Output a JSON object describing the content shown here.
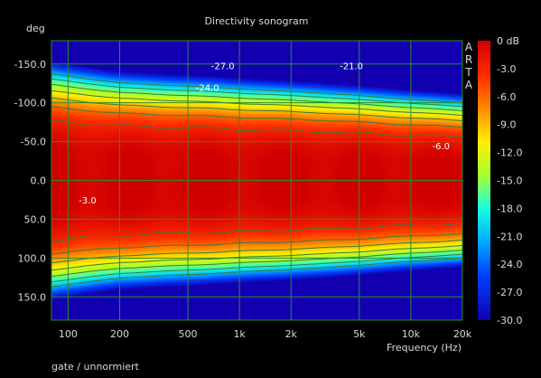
{
  "chart_data": {
    "type": "heatmap",
    "title": "Directivity sonogram",
    "ylabel": "deg",
    "xlabel": "Frequency (Hz)",
    "footer": "gate / unnormiert",
    "brand": "ARTA",
    "x_scale": "log",
    "xlim": [
      80,
      20000
    ],
    "ylim": [
      -180,
      180
    ],
    "x_ticks": [
      {
        "value": 100,
        "label": "100"
      },
      {
        "value": 200,
        "label": "200"
      },
      {
        "value": 500,
        "label": "500"
      },
      {
        "value": 1000,
        "label": "1k"
      },
      {
        "value": 2000,
        "label": "2k"
      },
      {
        "value": 5000,
        "label": "5k"
      },
      {
        "value": 10000,
        "label": "10k"
      },
      {
        "value": 20000,
        "label": "20k"
      }
    ],
    "y_ticks": [
      {
        "value": -150,
        "label": "-150.0"
      },
      {
        "value": -100,
        "label": "-100.0"
      },
      {
        "value": -50,
        "label": "-50.0"
      },
      {
        "value": 0,
        "label": "0.0"
      },
      {
        "value": 50,
        "label": "50.0"
      },
      {
        "value": 100,
        "label": "100.0"
      },
      {
        "value": 150,
        "label": "150.0"
      }
    ],
    "colorbar": {
      "range_db": [
        -30,
        0
      ],
      "labels": [
        "0 dB",
        "-3.0",
        "-6.0",
        "-9.0",
        "-12.0",
        "-15.0",
        "-18.0",
        "-21.0",
        "-24.0",
        "-27.0",
        "-30.0"
      ]
    },
    "contour_labels": [
      {
        "text": "-27.0",
        "freq": 800,
        "deg": -148
      },
      {
        "text": "-24.0",
        "freq": 650,
        "deg": -120
      },
      {
        "text": "-21.0",
        "freq": 4500,
        "deg": -148
      },
      {
        "text": "-6.0",
        "freq": 15000,
        "deg": -45
      },
      {
        "text": "-3.0",
        "freq": 130,
        "deg": 25
      }
    ],
    "beamwidth_profile": [
      {
        "freq": 80,
        "half_width_deg": 85
      },
      {
        "freq": 120,
        "half_width_deg": 82
      },
      {
        "freq": 200,
        "half_width_deg": 78
      },
      {
        "freq": 400,
        "half_width_deg": 76
      },
      {
        "freq": 800,
        "half_width_deg": 74
      },
      {
        "freq": 1500,
        "half_width_deg": 72
      },
      {
        "freq": 3000,
        "half_width_deg": 70
      },
      {
        "freq": 6000,
        "half_width_deg": 67
      },
      {
        "freq": 12000,
        "half_width_deg": 64
      },
      {
        "freq": 20000,
        "half_width_deg": 62
      }
    ],
    "colors": {
      "background": "#000000",
      "grid": "#2e8b2e",
      "contour": "#3a7a3a",
      "text": "#d8d8d8"
    }
  }
}
